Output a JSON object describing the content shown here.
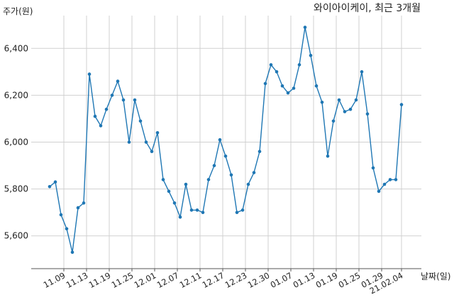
{
  "colors": {
    "series": "#1f77b4"
  },
  "chart_data": {
    "type": "line",
    "title": "와이아이케이, 최근 3개월",
    "ylabel": "주가(원)",
    "xlabel": "날짜(일)",
    "grid": true,
    "ylim": [
      5460,
      6540
    ],
    "yticks": [
      5600,
      5800,
      6000,
      6200,
      6400
    ],
    "ytick_labels": [
      "5,600",
      "5,800",
      "6,000",
      "6,200",
      "6,400"
    ],
    "xtick_labels": [
      "11.09",
      "11.13",
      "11.19",
      "11.25",
      "12.01",
      "12.07",
      "12.11",
      "12.17",
      "12.23",
      "12.30",
      "01.07",
      "01.13",
      "01.19",
      "01.25",
      "01.29",
      "21.02.04"
    ],
    "xtick_positions": [
      2.5,
      6.5,
      10.5,
      14.5,
      18.5,
      22.5,
      26.5,
      30.5,
      34.5,
      38.5,
      42.5,
      46.5,
      50.5,
      54.5,
      58.5,
      62
    ],
    "series": [
      {
        "values": [
          5810,
          5830,
          5690,
          5630,
          5530,
          5720,
          5740,
          6290,
          6110,
          6070,
          6140,
          6200,
          6260,
          6180,
          6000,
          6180,
          6090,
          6000,
          5960,
          6040,
          5840,
          5790,
          5740,
          5680,
          5820,
          5710,
          5710,
          5700,
          5840,
          5900,
          6010,
          5940,
          5860,
          5700,
          5710,
          5820,
          5870,
          5960,
          6250,
          6330,
          6300,
          6240,
          6210,
          6230,
          6330,
          6490,
          6370,
          6240,
          6170,
          5940,
          6090,
          6180,
          6130,
          6140,
          6180,
          6300,
          6120,
          5890,
          5790,
          5820,
          5840,
          5840,
          6160
        ]
      }
    ]
  }
}
